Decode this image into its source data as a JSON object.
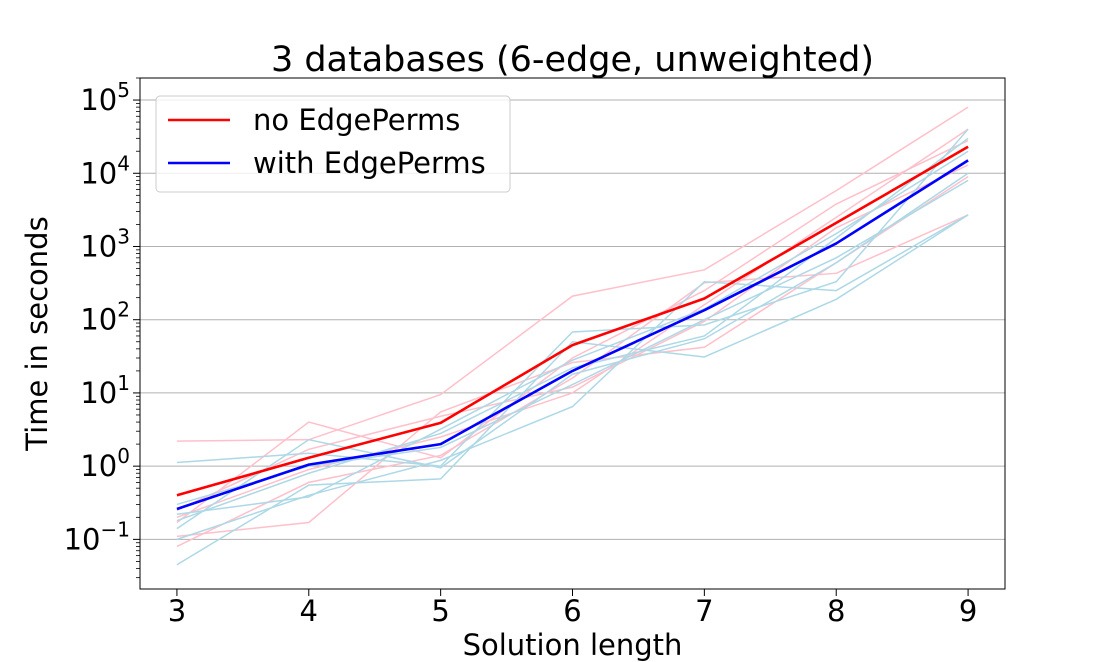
{
  "chart_data": {
    "type": "line",
    "title": "3 databases (6-edge, unweighted)",
    "xlabel": "Solution length",
    "ylabel": "Time in seconds",
    "y_scale": "log",
    "xlim": [
      2.72,
      9.28
    ],
    "ylim": [
      0.021,
      200000
    ],
    "x_ticks": [
      3,
      4,
      5,
      6,
      7,
      8,
      9
    ],
    "x_tick_labels": [
      "3",
      "4",
      "5",
      "6",
      "7",
      "8",
      "9"
    ],
    "y_ticks": [
      0.1,
      1,
      10,
      100,
      1000,
      10000,
      100000
    ],
    "y_tick_labels": [
      {
        "base": "10",
        "exp": "−1"
      },
      {
        "base": "10",
        "exp": "0"
      },
      {
        "base": "10",
        "exp": "1"
      },
      {
        "base": "10",
        "exp": "2"
      },
      {
        "base": "10",
        "exp": "3"
      },
      {
        "base": "10",
        "exp": "4"
      },
      {
        "base": "10",
        "exp": "5"
      }
    ],
    "grid": "y-major",
    "legend": {
      "position": "top-left",
      "entries": [
        {
          "label": "no EdgePerms",
          "color": "#ff0000"
        },
        {
          "label": "with EdgePerms",
          "color": "#0000ff"
        }
      ]
    },
    "x": [
      3,
      4,
      5,
      6,
      7,
      8,
      9
    ],
    "series": [
      {
        "name": "no EdgePerms",
        "color": "#ff0000",
        "values": [
          0.4,
          1.3,
          3.9,
          45,
          195,
          2100,
          23000
        ]
      },
      {
        "name": "with EdgePerms",
        "color": "#0000ff",
        "values": [
          0.26,
          1.05,
          2.0,
          20,
          135,
          1100,
          15000
        ]
      }
    ],
    "background_series": [
      {
        "color": "#ffc0cb",
        "values": [
          2.2,
          2.3,
          9.5,
          210,
          480,
          5800,
          80000
        ]
      },
      {
        "color": "#ffc0cb",
        "values": [
          0.17,
          4.0,
          1.3,
          30,
          250,
          3800,
          28000
        ]
      },
      {
        "color": "#ffc0cb",
        "values": [
          0.11,
          0.17,
          5.5,
          26,
          42,
          600,
          9000
        ]
      },
      {
        "color": "#ffc0cb",
        "values": [
          0.08,
          0.6,
          1.4,
          16,
          320,
          430,
          2700
        ]
      },
      {
        "color": "#ffc0cb",
        "values": [
          0.25,
          1.7,
          4.8,
          12,
          95,
          1800,
          13000
        ]
      },
      {
        "color": "#ffc0cb",
        "values": [
          0.2,
          0.9,
          2.5,
          10,
          160,
          2500,
          40000
        ]
      },
      {
        "color": "#add8e6",
        "values": [
          1.12,
          1.5,
          1.0,
          68,
          85,
          330,
          40000
        ]
      },
      {
        "color": "#add8e6",
        "values": [
          0.045,
          0.55,
          0.67,
          50,
          31,
          190,
          2700
        ]
      },
      {
        "color": "#add8e6",
        "values": [
          0.1,
          0.4,
          1.2,
          6.5,
          330,
          250,
          2700
        ]
      },
      {
        "color": "#add8e6",
        "values": [
          0.14,
          2.3,
          0.95,
          18,
          55,
          600,
          10000
        ]
      },
      {
        "color": "#add8e6",
        "values": [
          0.22,
          0.38,
          3.2,
          28,
          140,
          1500,
          20000
        ]
      },
      {
        "color": "#add8e6",
        "values": [
          0.3,
          1.0,
          1.8,
          13,
          100,
          700,
          8000
        ]
      },
      {
        "color": "#add8e6",
        "values": [
          0.18,
          0.8,
          2.8,
          22,
          60,
          1300,
          30000
        ]
      }
    ]
  }
}
